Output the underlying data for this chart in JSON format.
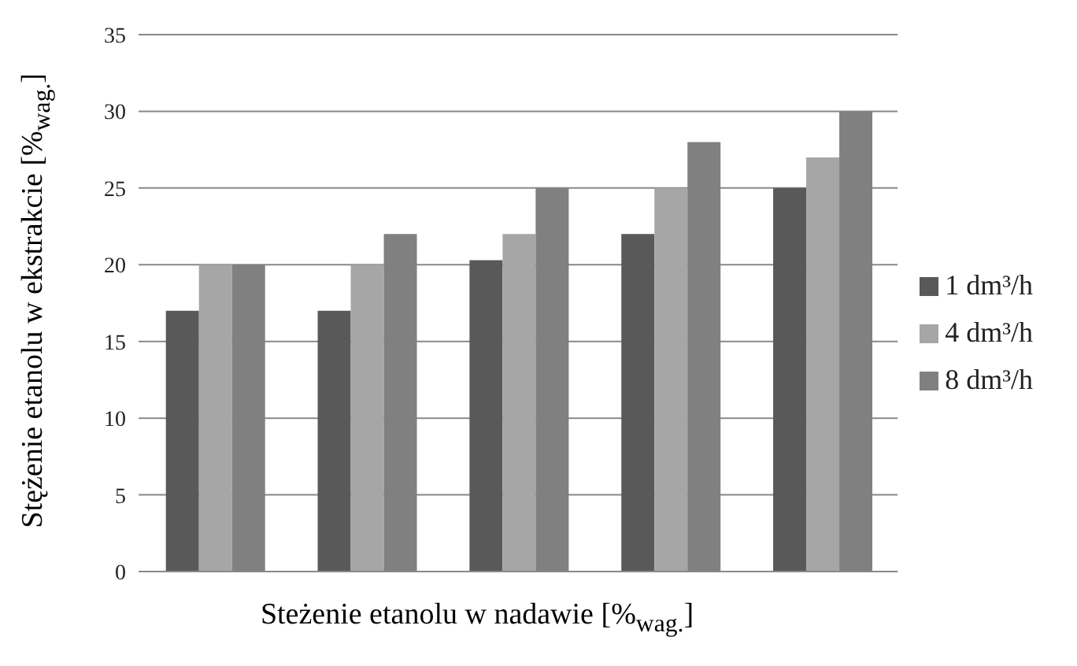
{
  "chart_data": {
    "type": "bar",
    "xlabel": "Steżenie etanolu w nadawie [%$_{wag.}$]",
    "ylabel": "Stężenie etanolu w ekstrakcie [%$_{wag.}$]",
    "categories": [
      null,
      null,
      null,
      null,
      null
    ],
    "series": [
      {
        "name": "1 dm³/h",
        "color": "#595959",
        "values": [
          17,
          17,
          20.3,
          22,
          25
        ]
      },
      {
        "name": "4 dm³/h",
        "color": "#a6a6a6",
        "values": [
          20,
          20,
          22,
          25,
          27
        ]
      },
      {
        "name": "8 dm³/h",
        "color": "#808080",
        "values": [
          20,
          22,
          25,
          28,
          30
        ]
      }
    ],
    "ylim": [
      0,
      35
    ],
    "yticks": [
      0,
      5,
      10,
      15,
      20,
      25,
      30,
      35
    ],
    "grid": "y",
    "legend": "right",
    "tick_labels": "y"
  }
}
